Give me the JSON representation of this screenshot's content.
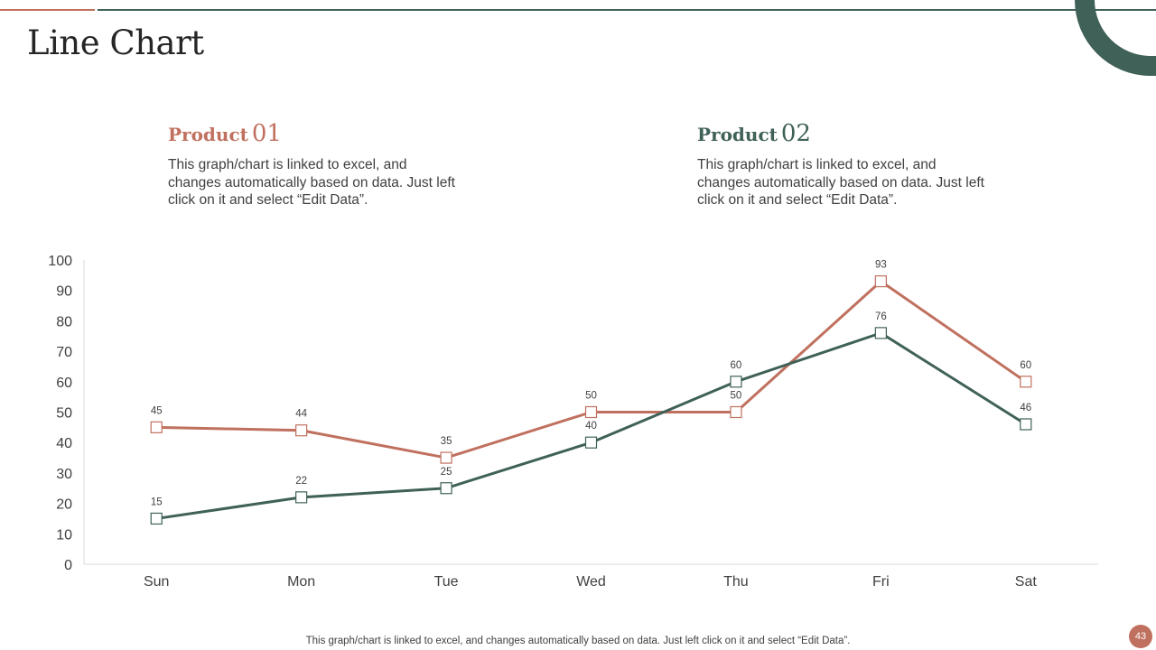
{
  "slide": {
    "title": "Line Chart",
    "footer": "This graph/chart is linked to excel,  and changes automatically based on data. Just left click on it and select “Edit Data”.",
    "page_number": "43"
  },
  "products": [
    {
      "label": "Product",
      "number": "01",
      "description": "This graph/chart  is linked to excel, and changes automatically  based on data. Just left click on it and select “Edit Data”.",
      "color": "#c0705e"
    },
    {
      "label": "Product",
      "number": "02",
      "description": "This graph/chart  is linked to excel, and changes automatically  based on data. Just left click on it and select “Edit Data”.",
      "color": "#3f6158"
    }
  ],
  "colors": {
    "accent_rust": "#c0705e",
    "accent_green": "#3f6158"
  },
  "chart_data": {
    "type": "line",
    "title": "",
    "xlabel": "",
    "ylabel": "",
    "categories": [
      "Sun",
      "Mon",
      "Tue",
      "Wed",
      "Thu",
      "Fri",
      "Sat"
    ],
    "ylim": [
      0,
      100
    ],
    "yticks": [
      "0",
      "10",
      "20",
      "30",
      "40",
      "50",
      "60",
      "70",
      "80",
      "90",
      "100"
    ],
    "grid": false,
    "legend": "none",
    "marker": "square",
    "series": [
      {
        "values": [
          45,
          44,
          35,
          50,
          50,
          93,
          60
        ],
        "color": "#c0705e"
      },
      {
        "values": [
          15,
          22,
          25,
          40,
          60,
          76,
          46
        ],
        "color": "#3f6158"
      }
    ]
  }
}
